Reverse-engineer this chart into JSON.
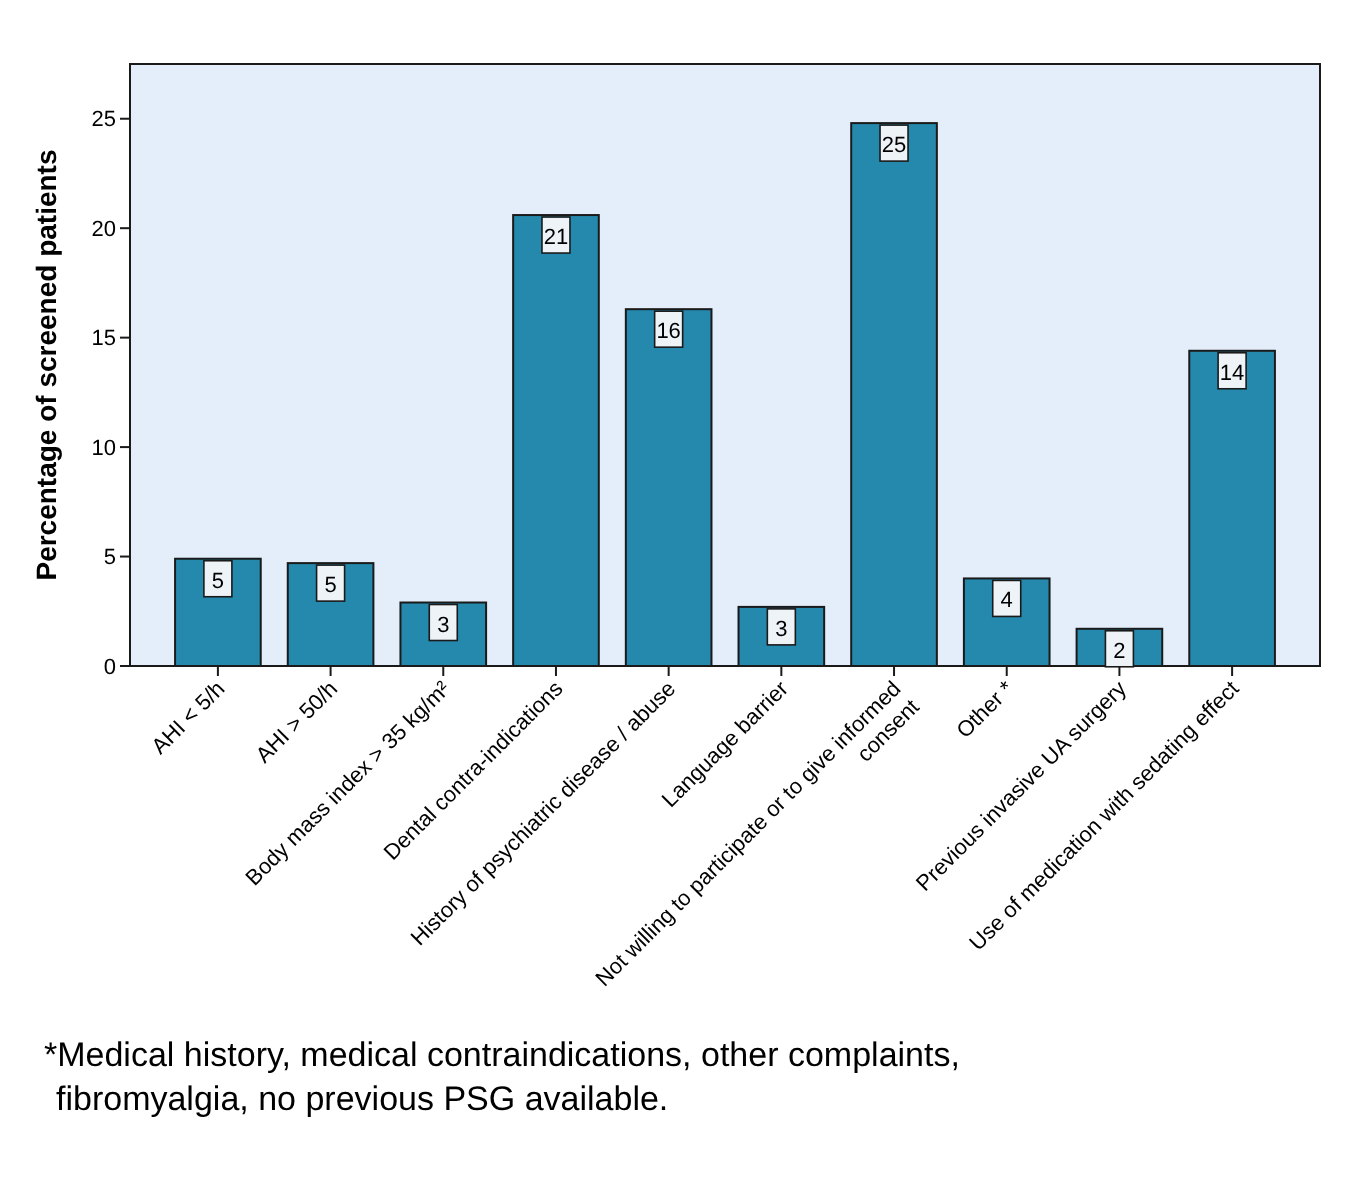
{
  "chart_data": {
    "type": "bar",
    "ylabel": "Percentage of screened patients",
    "categories": [
      "AHI < 5/h",
      "AHI > 50/h",
      "Body mass index > 35 kg/m²",
      "Dental contra-indications",
      "History of psychiatric disease / abuse",
      "Language barrier",
      "Not willing to participate or to give informed\nconsent",
      "Other *",
      "Previous invasive UA surgery",
      "Use of medication with sedating effect"
    ],
    "values": [
      4.9,
      4.7,
      2.9,
      20.6,
      16.3,
      2.7,
      24.8,
      4.0,
      1.7,
      14.4
    ],
    "value_labels": [
      "5",
      "5",
      "3",
      "21",
      "16",
      "3",
      "25",
      "4",
      "2",
      "14"
    ],
    "color": "#2589ad",
    "ylim": [
      0,
      27.5
    ],
    "yticks": [
      0,
      5,
      10,
      15,
      20,
      25
    ],
    "grid": false,
    "annotations": [
      "*Medical history, medical contraindications, other complaints, fibromyalgia, no previous PSG available."
    ]
  }
}
